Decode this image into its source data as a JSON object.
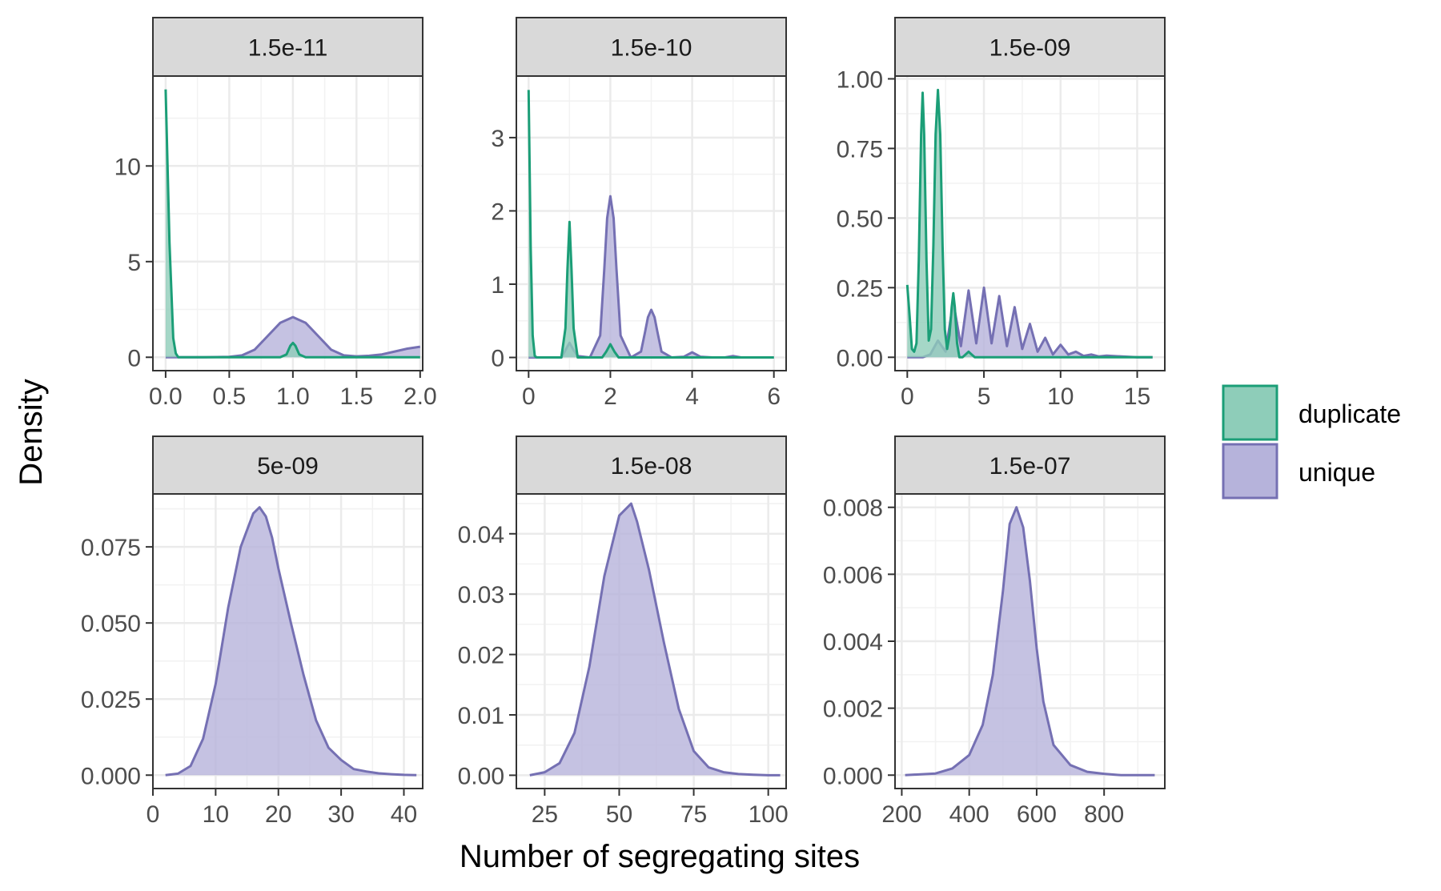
{
  "chart_data": {
    "type": "area",
    "chart_kind": "faceted density plot",
    "xlabel": "Number of segregating sites",
    "ylabel": "Density",
    "grid": true,
    "legend": {
      "placement": "right",
      "entries": [
        {
          "name": "duplicate",
          "color": "#1b9e77",
          "fill": "#8ecdb9"
        },
        {
          "name": "unique",
          "color": "#7570b3",
          "fill": "#b6b3db"
        }
      ]
    },
    "panels": [
      {
        "label": "1.5e-11",
        "xlim": [
          -0.1,
          2.02
        ],
        "ylim": [
          -0.7,
          14.7
        ],
        "xticks": [
          0,
          0.5,
          1,
          1.5,
          2
        ],
        "xtick_labels": [
          "0.0",
          "0.5",
          "1.0",
          "1.5",
          "2.0"
        ],
        "yticks": [
          0,
          5,
          10
        ],
        "ytick_labels": [
          "0",
          "5",
          "10"
        ],
        "series": [
          {
            "name": "duplicate",
            "x": [
              0,
              0.03,
              0.06,
              0.08,
              0.1,
              0.2,
              0.9,
              0.95,
              0.98,
              1,
              1.02,
              1.05,
              1.1,
              2
            ],
            "y": [
              14,
              6,
              1,
              0.2,
              0,
              0,
              0,
              0.15,
              0.6,
              0.75,
              0.6,
              0.15,
              0,
              0
            ]
          },
          {
            "name": "unique",
            "x": [
              0,
              0.3,
              0.5,
              0.6,
              0.7,
              0.8,
              0.9,
              1.0,
              1.1,
              1.2,
              1.3,
              1.4,
              1.5,
              1.6,
              1.7,
              1.8,
              1.9,
              2.0
            ],
            "y": [
              0,
              0,
              0.02,
              0.1,
              0.4,
              1.1,
              1.8,
              2.1,
              1.8,
              1.1,
              0.4,
              0.1,
              0.05,
              0.08,
              0.15,
              0.3,
              0.45,
              0.55
            ]
          }
        ]
      },
      {
        "label": "1.5e-10",
        "xlim": [
          -0.3,
          6.3
        ],
        "ylim": [
          -0.18,
          3.84
        ],
        "xticks": [
          0,
          2,
          4,
          6
        ],
        "xtick_labels": [
          "0",
          "2",
          "4",
          "6"
        ],
        "yticks": [
          0,
          1,
          2,
          3
        ],
        "ytick_labels": [
          "0",
          "1",
          "2",
          "3"
        ],
        "series": [
          {
            "name": "duplicate",
            "x": [
              0,
              0.05,
              0.1,
              0.15,
              0.2,
              0.8,
              0.9,
              0.95,
              1,
              1.05,
              1.1,
              1.2,
              1.8,
              1.9,
              2,
              2.1,
              2.2,
              6
            ],
            "y": [
              3.65,
              1.5,
              0.3,
              0.02,
              0,
              0,
              0.4,
              1.2,
              1.85,
              1.2,
              0.4,
              0,
              0,
              0.08,
              0.18,
              0.08,
              0,
              0
            ]
          },
          {
            "name": "unique",
            "x": [
              0,
              0.8,
              0.9,
              1,
              1.1,
              1.2,
              1.5,
              1.75,
              1.85,
              1.92,
              2,
              2.08,
              2.15,
              2.25,
              2.5,
              2.75,
              2.85,
              2.92,
              3,
              3.08,
              3.15,
              3.25,
              3.5,
              3.8,
              4,
              4.2,
              4.5,
              4.8,
              5,
              5.2,
              5.5,
              6
            ],
            "y": [
              0,
              0,
              0.1,
              0.2,
              0.1,
              0.02,
              0,
              0.3,
              1.2,
              1.9,
              2.2,
              1.9,
              1.2,
              0.3,
              0,
              0.08,
              0.35,
              0.55,
              0.65,
              0.55,
              0.35,
              0.08,
              0,
              0.01,
              0.07,
              0.01,
              0,
              0,
              0.02,
              0,
              0,
              0
            ]
          }
        ]
      },
      {
        "label": "1.5e-09",
        "xlim": [
          -0.8,
          16.8
        ],
        "ylim": [
          -0.048,
          1.01
        ],
        "xticks": [
          0,
          5,
          10,
          15
        ],
        "xtick_labels": [
          "0",
          "5",
          "10",
          "15"
        ],
        "yticks": [
          0,
          0.25,
          0.5,
          0.75,
          1
        ],
        "ytick_labels": [
          "0.00",
          "0.25",
          "0.50",
          "0.75",
          "1.00"
        ],
        "series": [
          {
            "name": "duplicate",
            "x": [
              0,
              0.15,
              0.3,
              0.45,
              0.6,
              0.75,
              0.9,
              1,
              1.1,
              1.25,
              1.4,
              1.55,
              1.7,
              1.85,
              2,
              2.15,
              2.3,
              2.45,
              2.6,
              2.75,
              2.9,
              3,
              3.1,
              3.25,
              3.4,
              3.6,
              3.8,
              4,
              4.2,
              4.4,
              16
            ],
            "y": [
              0.26,
              0.15,
              0.03,
              0.02,
              0.05,
              0.35,
              0.8,
              0.95,
              0.8,
              0.35,
              0.06,
              0.1,
              0.4,
              0.8,
              0.96,
              0.8,
              0.4,
              0.1,
              0.03,
              0.08,
              0.18,
              0.23,
              0.18,
              0.05,
              0,
              0,
              0.01,
              0.02,
              0.01,
              0,
              0
            ]
          },
          {
            "name": "unique",
            "x": [
              0,
              1,
              1.5,
              2,
              2.5,
              3,
              3.5,
              4,
              4.5,
              5,
              5.5,
              6,
              6.5,
              7,
              7.5,
              8,
              8.5,
              9,
              9.5,
              10,
              10.5,
              11,
              11.5,
              12,
              12.5,
              13,
              14,
              15,
              16
            ],
            "y": [
              0,
              0,
              0.01,
              0.06,
              0.02,
              0.2,
              0.04,
              0.24,
              0.05,
              0.25,
              0.05,
              0.22,
              0.04,
              0.18,
              0.03,
              0.12,
              0.02,
              0.07,
              0.01,
              0.045,
              0.01,
              0.02,
              0.005,
              0.01,
              0.003,
              0.006,
              0.003,
              0,
              0
            ]
          }
        ]
      },
      {
        "label": "5e-09",
        "xlim": [
          0,
          43
        ],
        "ylim": [
          -0.0044,
          0.0924
        ],
        "xticks": [
          0,
          10,
          20,
          30,
          40
        ],
        "xtick_labels": [
          "0",
          "10",
          "20",
          "30",
          "40"
        ],
        "yticks": [
          0,
          0.025,
          0.05,
          0.075
        ],
        "ytick_labels": [
          "0.000",
          "0.025",
          "0.050",
          "0.075"
        ],
        "series": [
          {
            "name": "unique",
            "x": [
              2,
              4,
              6,
              8,
              10,
              12,
              14,
              16,
              17,
              18,
              19,
              20,
              22,
              24,
              26,
              28,
              30,
              32,
              34,
              36,
              38,
              40,
              42
            ],
            "y": [
              0,
              0.0005,
              0.003,
              0.012,
              0.03,
              0.055,
              0.075,
              0.086,
              0.088,
              0.085,
              0.078,
              0.068,
              0.05,
              0.033,
              0.018,
              0.009,
              0.005,
              0.002,
              0.0012,
              0.0006,
              0.0003,
              0.0001,
              0
            ]
          }
        ]
      },
      {
        "label": "1.5e-08",
        "xlim": [
          15.5,
          106
        ],
        "ylim": [
          -0.0022,
          0.0466
        ],
        "xticks": [
          25,
          50,
          75,
          100
        ],
        "xtick_labels": [
          "25",
          "50",
          "75",
          "100"
        ],
        "yticks": [
          0,
          0.01,
          0.02,
          0.03,
          0.04
        ],
        "ytick_labels": [
          "0.00",
          "0.01",
          "0.02",
          "0.03",
          "0.04"
        ],
        "series": [
          {
            "name": "unique",
            "x": [
              20,
              25,
              30,
              35,
              40,
              45,
              50,
              52,
              54,
              56,
              60,
              65,
              70,
              75,
              80,
              85,
              90,
              95,
              100,
              104
            ],
            "y": [
              0,
              0.0005,
              0.002,
              0.007,
              0.018,
              0.033,
              0.043,
              0.044,
              0.045,
              0.042,
              0.034,
              0.022,
              0.011,
              0.004,
              0.0013,
              0.0005,
              0.0002,
              0.0001,
              0,
              0
            ]
          }
        ]
      },
      {
        "label": "1.5e-07",
        "xlim": [
          180,
          980
        ],
        "ylim": [
          -0.0004,
          0.0084
        ],
        "xticks": [
          200,
          400,
          600,
          800
        ],
        "xtick_labels": [
          "200",
          "400",
          "600",
          "800"
        ],
        "yticks": [
          0,
          0.002,
          0.004,
          0.006,
          0.008
        ],
        "ytick_labels": [
          "0.000",
          "0.002",
          "0.004",
          "0.006",
          "0.008"
        ],
        "series": [
          {
            "name": "unique",
            "x": [
              210,
              300,
              350,
              400,
              440,
              470,
              500,
              520,
              540,
              560,
              580,
              600,
              620,
              650,
              700,
              750,
              800,
              850,
              950
            ],
            "y": [
              0,
              5e-05,
              0.0002,
              0.0006,
              0.0015,
              0.003,
              0.0055,
              0.0075,
              0.008,
              0.0074,
              0.0058,
              0.0038,
              0.0022,
              0.0009,
              0.0003,
              0.0001,
              4e-05,
              0,
              0
            ]
          }
        ]
      }
    ]
  }
}
